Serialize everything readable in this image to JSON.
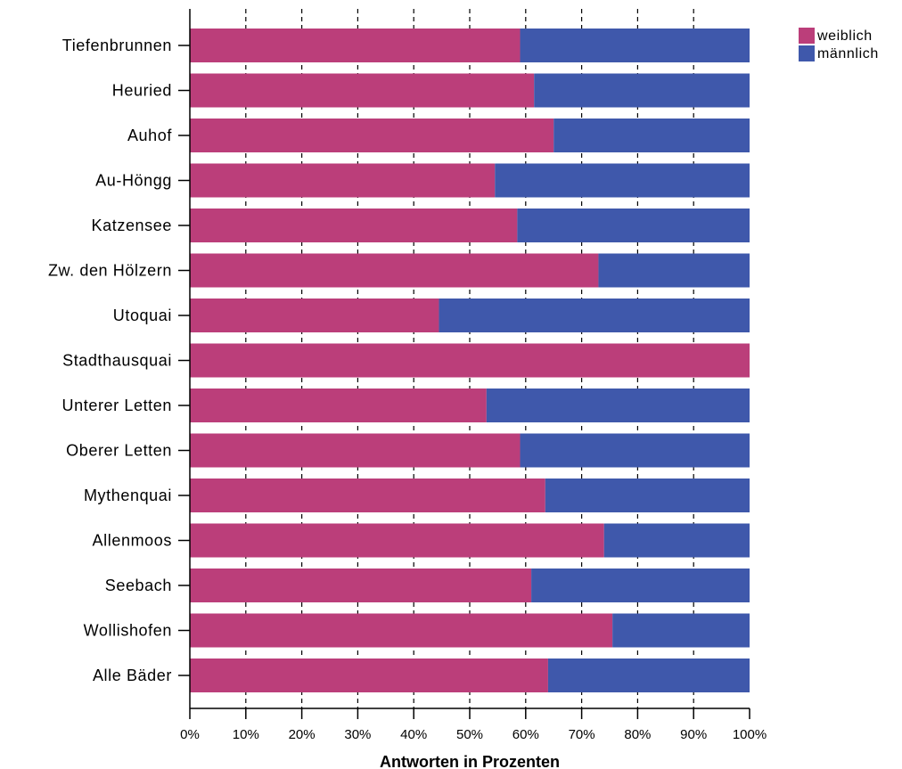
{
  "chart_data": {
    "type": "bar",
    "orientation": "horizontal",
    "stacked": true,
    "normalized_percent": true,
    "categories": [
      "Tiefenbrunnen",
      "Heuried",
      "Auhof",
      "Au-Höngg",
      "Katzensee",
      "Zw. den Hölzern",
      "Utoquai",
      "Stadthausquai",
      "Unterer Letten",
      "Oberer Letten",
      "Mythenquai",
      "Allenmoos",
      "Seebach",
      "Wollishofen",
      "Alle Bäder"
    ],
    "series": [
      {
        "name": "weiblich",
        "color": "#bb3e7a",
        "values": [
          59,
          61.5,
          65,
          54.5,
          58.5,
          73,
          44.5,
          100,
          53,
          59,
          63.5,
          74,
          61,
          75.5,
          64
        ]
      },
      {
        "name": "männlich",
        "color": "#3f58ab",
        "values": [
          41,
          38.5,
          35,
          45.5,
          41.5,
          27,
          55.5,
          0,
          47,
          41,
          36.5,
          26,
          39,
          24.5,
          36
        ]
      }
    ],
    "title": "",
    "xlabel": "Antworten in Prozenten",
    "ylabel": "",
    "xlim": [
      0,
      100
    ],
    "xticks": [
      "0%",
      "10%",
      "20%",
      "30%",
      "40%",
      "50%",
      "60%",
      "70%",
      "80%",
      "90%",
      "100%"
    ],
    "grid": {
      "vertical": true,
      "style": "dashed"
    },
    "legend": {
      "position": "top-right"
    }
  }
}
